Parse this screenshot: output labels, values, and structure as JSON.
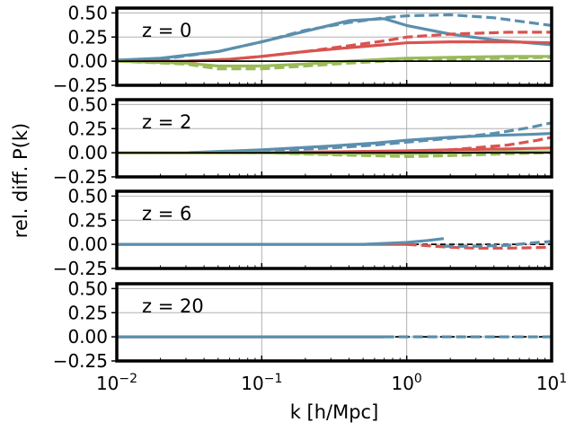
{
  "figure": {
    "ylabel": "rel. diff. P(k)",
    "xlabel": "k [h/Mpc]",
    "xticks": [
      {
        "base": "10",
        "exp": "−2",
        "value": 0.01
      },
      {
        "base": "10",
        "exp": "−1",
        "value": 0.1
      },
      {
        "base": "10",
        "exp": "0",
        "value": 1
      },
      {
        "base": "10",
        "exp": "1",
        "value": 10
      }
    ],
    "yticks": [
      "0.50",
      "0.25",
      "0.00",
      "−0.25"
    ]
  },
  "colors": {
    "blue": "#5b8fad",
    "red": "#d9534f",
    "green": "#9abb59",
    "black": "#000000"
  },
  "chart_data": [
    {
      "type": "line",
      "label": "z = 0",
      "xscale": "log",
      "xlim": [
        0.01,
        10
      ],
      "ylim": [
        -0.25,
        0.55
      ],
      "series": [
        {
          "name": "blue solid",
          "color": "blue",
          "style": "solid",
          "x": [
            0.01,
            0.02,
            0.05,
            0.1,
            0.2,
            0.4,
            0.7,
            1,
            2,
            4,
            7,
            10
          ],
          "y": [
            0.01,
            0.03,
            0.1,
            0.2,
            0.31,
            0.42,
            0.44,
            0.37,
            0.28,
            0.22,
            0.19,
            0.17
          ]
        },
        {
          "name": "blue dashed",
          "color": "blue",
          "style": "dashed",
          "x": [
            0.01,
            0.02,
            0.05,
            0.1,
            0.2,
            0.4,
            0.7,
            1,
            2,
            4,
            7,
            10
          ],
          "y": [
            0.01,
            0.02,
            0.1,
            0.2,
            0.32,
            0.4,
            0.45,
            0.47,
            0.48,
            0.45,
            0.4,
            0.37
          ]
        },
        {
          "name": "red solid",
          "color": "red",
          "style": "solid",
          "x": [
            0.01,
            0.03,
            0.06,
            0.1,
            0.2,
            0.4,
            0.7,
            1,
            2,
            5,
            10
          ],
          "y": [
            0.0,
            0.0,
            0.02,
            0.05,
            0.1,
            0.14,
            0.17,
            0.19,
            0.2,
            0.2,
            0.19
          ]
        },
        {
          "name": "red dashed",
          "color": "red",
          "style": "dashed",
          "x": [
            0.01,
            0.03,
            0.06,
            0.1,
            0.2,
            0.4,
            0.7,
            1,
            2,
            5,
            10
          ],
          "y": [
            0.0,
            0.0,
            0.02,
            0.05,
            0.1,
            0.16,
            0.21,
            0.25,
            0.28,
            0.3,
            0.3
          ]
        },
        {
          "name": "green solid",
          "color": "green",
          "style": "solid",
          "x": [
            0.01,
            0.03,
            0.05,
            0.1,
            0.2,
            0.4,
            0.7,
            1,
            2,
            5,
            10
          ],
          "y": [
            0.0,
            -0.02,
            -0.05,
            -0.05,
            -0.03,
            0.0,
            0.02,
            0.03,
            0.04,
            0.05,
            0.05
          ]
        },
        {
          "name": "green dashed",
          "color": "green",
          "style": "dashed",
          "x": [
            0.01,
            0.03,
            0.05,
            0.1,
            0.2,
            0.4,
            0.7,
            1,
            2,
            5,
            10
          ],
          "y": [
            0.0,
            -0.03,
            -0.08,
            -0.08,
            -0.05,
            -0.02,
            0.0,
            0.01,
            0.02,
            0.03,
            0.04
          ]
        },
        {
          "name": "black reference",
          "color": "black",
          "style": "solid",
          "x": [
            0.01,
            10
          ],
          "y": [
            0.0,
            0.0
          ]
        }
      ]
    },
    {
      "type": "line",
      "label": "z = 2",
      "xscale": "log",
      "xlim": [
        0.01,
        10
      ],
      "ylim": [
        -0.25,
        0.55
      ],
      "series": [
        {
          "name": "blue solid",
          "color": "blue",
          "style": "solid",
          "x": [
            0.01,
            0.03,
            0.1,
            0.3,
            0.6,
            1,
            2,
            4,
            7,
            10
          ],
          "y": [
            0.0,
            0.0,
            0.03,
            0.07,
            0.1,
            0.13,
            0.16,
            0.18,
            0.19,
            0.2
          ]
        },
        {
          "name": "blue dashed",
          "color": "blue",
          "style": "dashed",
          "x": [
            0.01,
            0.03,
            0.1,
            0.3,
            0.6,
            1,
            2,
            4,
            7,
            10
          ],
          "y": [
            0.0,
            0.0,
            0.02,
            0.05,
            0.08,
            0.11,
            0.15,
            0.2,
            0.26,
            0.31
          ]
        },
        {
          "name": "red solid",
          "color": "red",
          "style": "solid",
          "x": [
            0.01,
            0.1,
            0.3,
            1,
            2,
            5,
            10
          ],
          "y": [
            0.0,
            0.0,
            0.01,
            0.02,
            0.03,
            0.04,
            0.05
          ]
        },
        {
          "name": "red dashed",
          "color": "red",
          "style": "dashed",
          "x": [
            0.01,
            0.1,
            0.3,
            1,
            2,
            5,
            8,
            10
          ],
          "y": [
            0.0,
            0.0,
            -0.01,
            0.0,
            0.03,
            0.08,
            0.13,
            0.16
          ]
        },
        {
          "name": "green solid",
          "color": "green",
          "style": "solid",
          "x": [
            0.01,
            0.1,
            0.3,
            1,
            2,
            5,
            10
          ],
          "y": [
            0.0,
            0.0,
            -0.01,
            -0.01,
            0.0,
            0.01,
            0.01
          ]
        },
        {
          "name": "green dashed",
          "color": "green",
          "style": "dashed",
          "x": [
            0.01,
            0.1,
            0.3,
            1,
            2,
            5,
            10
          ],
          "y": [
            0.0,
            0.0,
            -0.02,
            -0.04,
            -0.03,
            -0.01,
            0.0
          ]
        },
        {
          "name": "black reference",
          "color": "black",
          "style": "solid",
          "x": [
            0.01,
            10
          ],
          "y": [
            0.0,
            0.0
          ]
        }
      ]
    },
    {
      "type": "line",
      "label": "z = 6",
      "xscale": "log",
      "xlim": [
        0.01,
        10
      ],
      "ylim": [
        -0.25,
        0.55
      ],
      "series": [
        {
          "name": "black dashed reference",
          "color": "black",
          "style": "dashed",
          "x": [
            0.01,
            10
          ],
          "y": [
            0.0,
            0.0
          ]
        },
        {
          "name": "red solid",
          "color": "red",
          "style": "solid",
          "x": [
            0.01,
            0.3,
            0.6,
            1
          ],
          "y": [
            0.0,
            0.0,
            0.0,
            0.0
          ]
        },
        {
          "name": "red dashed",
          "color": "red",
          "style": "dashed",
          "x": [
            1,
            2,
            3,
            5,
            10
          ],
          "y": [
            0.0,
            -0.03,
            -0.04,
            -0.04,
            -0.03
          ]
        },
        {
          "name": "blue solid",
          "color": "blue",
          "style": "solid",
          "x": [
            0.01,
            0.1,
            0.5,
            1,
            1.4,
            1.8
          ],
          "y": [
            0.0,
            0.0,
            0.0,
            0.02,
            0.04,
            0.06
          ]
        },
        {
          "name": "blue dashed",
          "color": "blue",
          "style": "dashed",
          "x": [
            1.8,
            3,
            5,
            8,
            10
          ],
          "y": [
            -0.02,
            -0.02,
            -0.01,
            0.02,
            0.03
          ]
        }
      ]
    },
    {
      "type": "line",
      "label": "z = 20",
      "xscale": "log",
      "xlim": [
        0.01,
        10
      ],
      "ylim": [
        -0.25,
        0.55
      ],
      "series": [
        {
          "name": "black dashed reference",
          "color": "black",
          "style": "dashed",
          "x": [
            0.01,
            10
          ],
          "y": [
            0.0,
            0.0
          ]
        },
        {
          "name": "red solid",
          "color": "red",
          "style": "solid",
          "x": [
            0.01,
            0.7
          ],
          "y": [
            0.0,
            0.0
          ]
        },
        {
          "name": "blue solid",
          "color": "blue",
          "style": "solid",
          "x": [
            0.01,
            0.7
          ],
          "y": [
            0.0,
            0.0
          ]
        },
        {
          "name": "blue dashed",
          "color": "blue",
          "style": "dashed",
          "x": [
            0.7,
            10
          ],
          "y": [
            0.0,
            0.0
          ]
        }
      ]
    }
  ]
}
